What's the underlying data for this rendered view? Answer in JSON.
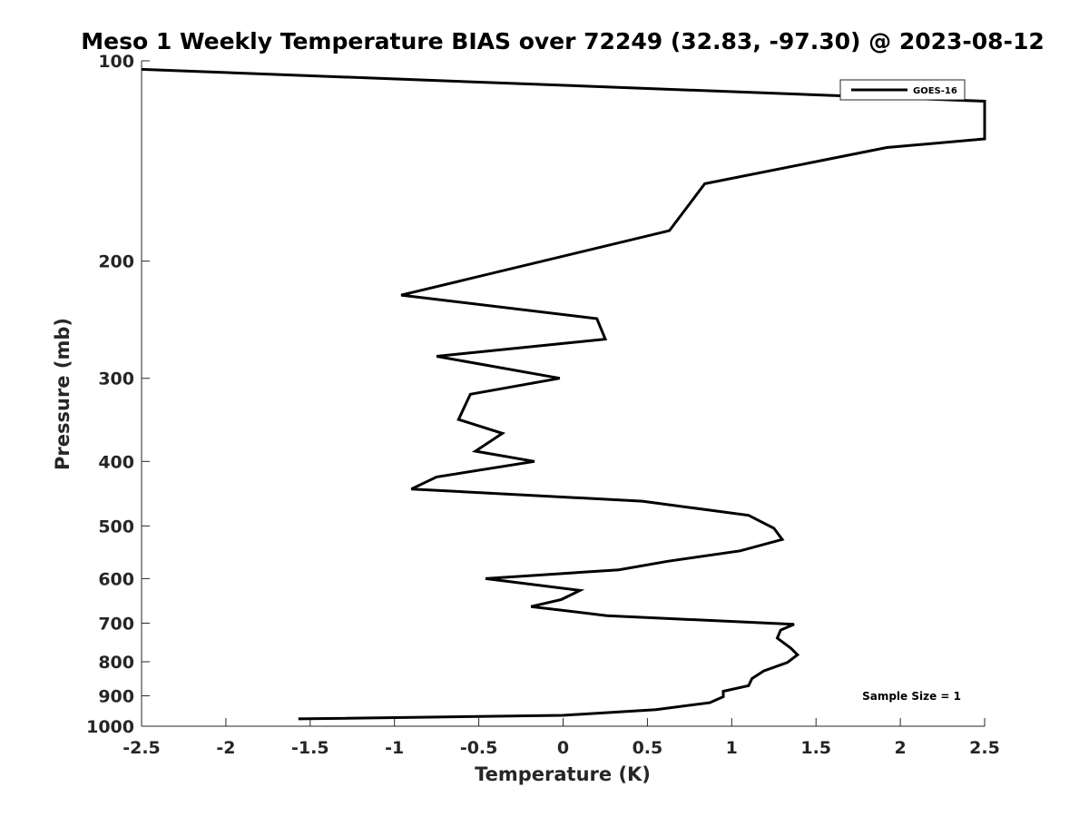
{
  "chart_data": {
    "type": "line",
    "title": "Meso 1 Weekly Temperature BIAS over 72249 (32.83, -97.30) @ 2023-08-12",
    "xlabel": "Temperature (K)",
    "ylabel": "Pressure (mb)",
    "xlim": [
      -2.5,
      2.5
    ],
    "ylim": [
      100,
      1000
    ],
    "y_scale": "log",
    "y_reversed": true,
    "grid": false,
    "legend_position": "top-right",
    "x_ticks": [
      "-2.5",
      "-2",
      "-1.5",
      "-1",
      "-0.5",
      "0",
      "0.5",
      "1",
      "1.5",
      "2",
      "2.5"
    ],
    "x_tick_values": [
      -2.5,
      -2,
      -1.5,
      -1,
      -0.5,
      0,
      0.5,
      1,
      1.5,
      2,
      2.5
    ],
    "y_ticks": [
      "100",
      "200",
      "300",
      "400",
      "500",
      "600",
      "700",
      "800",
      "900",
      "1000"
    ],
    "y_tick_values": [
      100,
      200,
      300,
      400,
      500,
      600,
      700,
      800,
      900,
      1000
    ],
    "series": [
      {
        "name": "GOES-16",
        "color": "#000000",
        "points": [
          [
            -2.5,
            103
          ],
          [
            2.5,
            115
          ],
          [
            2.5,
            131
          ],
          [
            1.92,
            135
          ],
          [
            0.84,
            153
          ],
          [
            0.63,
            180
          ],
          [
            -0.96,
            225
          ],
          [
            0.2,
            244
          ],
          [
            0.25,
            262
          ],
          [
            -0.75,
            278
          ],
          [
            -0.02,
            300
          ],
          [
            -0.55,
            317
          ],
          [
            -0.62,
            346
          ],
          [
            -0.36,
            363
          ],
          [
            -0.52,
            386
          ],
          [
            -0.17,
            400
          ],
          [
            -0.75,
            422
          ],
          [
            -0.9,
            440
          ],
          [
            0.47,
            459
          ],
          [
            1.1,
            482
          ],
          [
            1.25,
            504
          ],
          [
            1.3,
            524
          ],
          [
            1.05,
            545
          ],
          [
            0.62,
            565
          ],
          [
            0.33,
            582
          ],
          [
            -0.46,
            600
          ],
          [
            0.1,
            625
          ],
          [
            -0.01,
            645
          ],
          [
            -0.19,
            661
          ],
          [
            0.26,
            682
          ],
          [
            1.37,
            703
          ],
          [
            1.29,
            717
          ],
          [
            1.27,
            737
          ],
          [
            1.35,
            763
          ],
          [
            1.39,
            781
          ],
          [
            1.33,
            802
          ],
          [
            1.19,
            826
          ],
          [
            1.12,
            848
          ],
          [
            1.1,
            869
          ],
          [
            0.95,
            886
          ],
          [
            0.95,
            903
          ],
          [
            0.87,
            922
          ],
          [
            0.55,
            944
          ],
          [
            0.0,
            963
          ],
          [
            -1.57,
            975
          ]
        ]
      }
    ],
    "legend": [
      {
        "label": "GOES-16",
        "color": "#000000"
      }
    ],
    "annotations": [
      {
        "text": "Sample Size = 1",
        "position": "bottom-right"
      }
    ]
  }
}
